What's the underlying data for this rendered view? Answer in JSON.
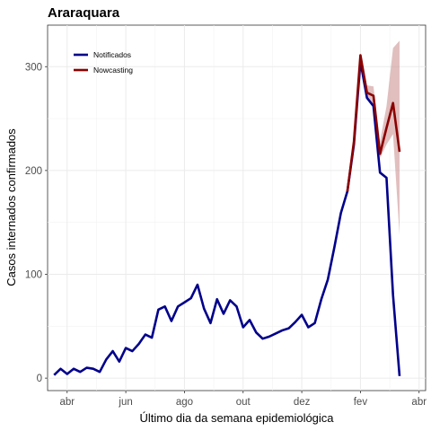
{
  "chart_data": {
    "type": "line",
    "title": "Araraquara",
    "xlabel": "Último dia da semana epidemiológica",
    "ylabel": "Casos internados confirmados",
    "x_unit": "week",
    "x_ticks": [
      {
        "label": "abr",
        "week": 2
      },
      {
        "label": "jun",
        "week": 11
      },
      {
        "label": "ago",
        "week": 20
      },
      {
        "label": "out",
        "week": 29
      },
      {
        "label": "dez",
        "week": 38
      },
      {
        "label": "fev",
        "week": 47
      },
      {
        "label": "abr",
        "week": 56
      }
    ],
    "y_ticks": [
      0,
      100,
      200,
      300
    ],
    "xlim": [
      -1,
      57
    ],
    "ylim": [
      -12,
      340
    ],
    "grid": true,
    "legend_position": "top-left",
    "series": [
      {
        "name": "Notificados",
        "color": "#00008b",
        "x": [
          0,
          1,
          2,
          3,
          4,
          5,
          6,
          7,
          8,
          9,
          10,
          11,
          12,
          13,
          14,
          15,
          16,
          17,
          18,
          19,
          20,
          21,
          22,
          23,
          24,
          25,
          26,
          27,
          28,
          29,
          30,
          31,
          32,
          33,
          34,
          35,
          36,
          37,
          38,
          39,
          40,
          41,
          42,
          43,
          44,
          45,
          46,
          47,
          48,
          49,
          50,
          51,
          52,
          53
        ],
        "y": [
          3,
          9,
          4,
          9,
          6,
          10,
          9,
          6,
          18,
          26,
          16,
          29,
          26,
          33,
          42,
          39,
          66,
          69,
          55,
          69,
          73,
          77,
          90,
          67,
          53,
          76,
          62,
          75,
          69,
          49,
          56,
          44,
          38,
          40,
          43,
          46,
          48,
          54,
          61,
          49,
          53,
          76,
          95,
          126,
          159,
          180,
          225,
          305,
          270,
          262,
          198,
          193,
          80,
          2
        ]
      },
      {
        "name": "Nowcasting",
        "color": "#8b0000",
        "x": [
          45,
          46,
          47,
          48,
          49,
          50,
          51,
          52,
          53
        ],
        "y": [
          180,
          228,
          311,
          275,
          272,
          216,
          241,
          265,
          218
        ]
      }
    ],
    "nowcasting_interval": {
      "color": "#c98a8a",
      "x": [
        45,
        46,
        47,
        48,
        49,
        50,
        51,
        52,
        53
      ],
      "lower": [
        180,
        226,
        309,
        270,
        262,
        212,
        225,
        235,
        138
      ],
      "upper": [
        181,
        232,
        313,
        282,
        281,
        228,
        262,
        318,
        325
      ]
    }
  }
}
